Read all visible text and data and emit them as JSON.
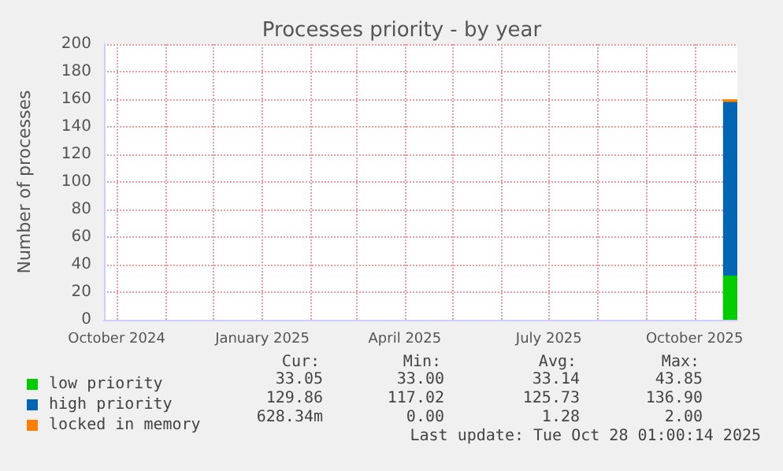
{
  "chart_data": {
    "type": "area",
    "title": "Processes priority - by year",
    "ylabel": "Number of processes",
    "stacked": true,
    "xlim": [
      "2024-09-23",
      "2025-10-28"
    ],
    "xticks": [
      {
        "value": "2024-10-01",
        "label": "October 2024"
      },
      {
        "value": "2024-11-01",
        "label": null
      },
      {
        "value": "2024-12-01",
        "label": null
      },
      {
        "value": "2025-01-01",
        "label": "January 2025"
      },
      {
        "value": "2025-02-01",
        "label": null
      },
      {
        "value": "2025-03-01",
        "label": null
      },
      {
        "value": "2025-04-01",
        "label": "April 2025"
      },
      {
        "value": "2025-05-01",
        "label": null
      },
      {
        "value": "2025-06-01",
        "label": null
      },
      {
        "value": "2025-07-01",
        "label": "July 2025"
      },
      {
        "value": "2025-08-01",
        "label": null
      },
      {
        "value": "2025-09-01",
        "label": null
      },
      {
        "value": "2025-10-01",
        "label": "October 2025"
      }
    ],
    "ylim": [
      0,
      200
    ],
    "yticks": [
      0,
      20,
      40,
      60,
      80,
      100,
      120,
      140,
      160,
      180,
      200
    ],
    "x": [
      "2025-10-19",
      "2025-10-28"
    ],
    "series": [
      {
        "name": "low priority",
        "color": "#00cc00",
        "values": [
          32,
          32
        ]
      },
      {
        "name": "high priority",
        "color": "#0066b3",
        "values": [
          126,
          126
        ]
      },
      {
        "name": "locked in memory",
        "color": "#ff8000",
        "values": [
          2,
          2
        ]
      }
    ],
    "grid": true,
    "legend": "bottom left",
    "annotations": [
      "Cur:",
      "Min:",
      "Avg:",
      "Max:",
      "33.05",
      "33.00",
      "33.14",
      "43.85",
      "129.86",
      "117.02",
      "125.73",
      "136.90",
      "628.34m",
      "0.00",
      "1.28",
      "2.00",
      "Last update: Tue Oct 28 01:00:14 2025"
    ]
  }
}
